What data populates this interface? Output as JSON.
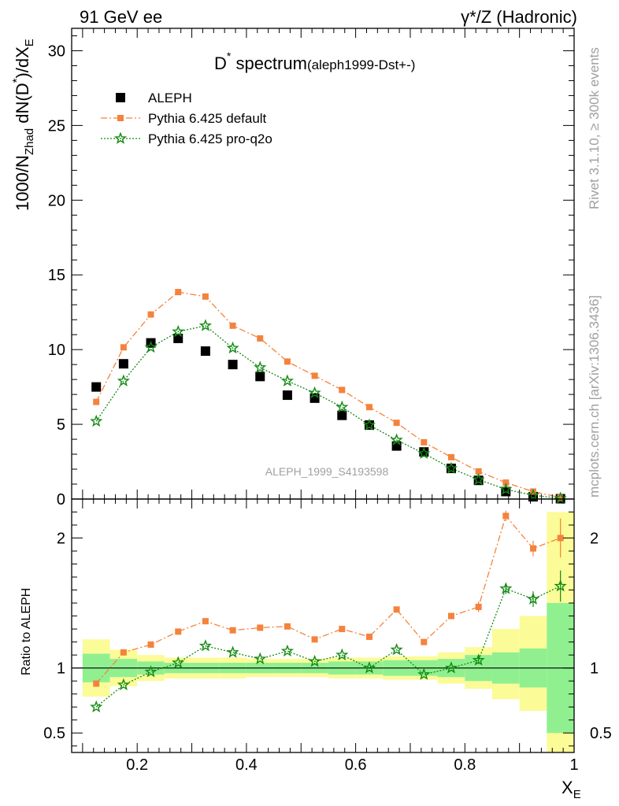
{
  "header": {
    "left": "91 GeV ee",
    "right": "γ*/Z (Hadronic)"
  },
  "side_labels": {
    "rivet": "Rivet 3.1.10, ≥ 300k events",
    "mcplots": "mcplots.cern.ch [arXiv:1306.3436]"
  },
  "chart_data": [
    {
      "type": "scatter",
      "panel": "main",
      "title_main": "D",
      "title_sup": "*",
      "title_rest": " spectrum",
      "title_suffix": "(aleph1999-Dst+-)",
      "watermark": "ALEPH_1999_S4193598",
      "ylabel": "1000/N_Zhad dN(D*)/dX_E",
      "ylabel_parts": {
        "a": "1000/N",
        "a_sub": "Zhad",
        "b": " dN(D",
        "b_sup": "*",
        "c": ")/dX",
        "c_sub": "E"
      },
      "xlim": [
        0.08,
        1.0
      ],
      "ylim": [
        0,
        31.5
      ],
      "yticks": [
        0,
        5,
        10,
        15,
        20,
        25,
        30
      ],
      "ytick_labels": [
        "0",
        "5",
        "10",
        "15",
        "20",
        "25",
        "30"
      ],
      "legend_placement": "top-left",
      "x": [
        0.125,
        0.175,
        0.225,
        0.275,
        0.325,
        0.375,
        0.425,
        0.475,
        0.525,
        0.575,
        0.625,
        0.675,
        0.725,
        0.775,
        0.825,
        0.875,
        0.925,
        0.975
      ],
      "series": [
        {
          "name": "ALEPH",
          "style": "square",
          "color": "#000000",
          "values": [
            7.5,
            9.05,
            10.45,
            10.75,
            9.9,
            9.0,
            8.2,
            6.95,
            6.75,
            5.6,
            4.95,
            3.55,
            3.15,
            2.05,
            1.25,
            0.5,
            0.15,
            0.02
          ]
        },
        {
          "name": "Pythia 6.425 default",
          "style": "orange-square",
          "color": "#f5823c",
          "values": [
            6.5,
            10.15,
            12.35,
            13.85,
            13.55,
            11.6,
            10.75,
            9.2,
            8.25,
            7.3,
            6.15,
            5.1,
            3.8,
            2.8,
            1.85,
            1.1,
            0.5,
            0.1
          ]
        },
        {
          "name": "Pythia 6.425 pro-q2o",
          "style": "green-star",
          "color": "#138a13",
          "values": [
            5.2,
            7.9,
            10.15,
            11.2,
            11.6,
            10.1,
            8.8,
            7.9,
            7.1,
            6.15,
            4.95,
            3.95,
            3.05,
            2.05,
            1.3,
            0.65,
            0.25,
            0.05
          ]
        }
      ]
    },
    {
      "type": "scatter",
      "panel": "ratio",
      "ylabel": "Ratio to ALEPH",
      "xlabel": "X",
      "xlabel_sub": "E",
      "xlim": [
        0.08,
        1.0
      ],
      "ylim": [
        0.35,
        2.3
      ],
      "yticks": [
        0.5,
        1,
        2
      ],
      "ytick_labels": [
        "0.5",
        "1",
        "2"
      ],
      "xticks": [
        0.2,
        0.4,
        0.6,
        0.8,
        1.0
      ],
      "xtick_labels": [
        "0.2",
        "0.4",
        "0.6",
        "0.8",
        "1"
      ],
      "bands": {
        "edges": [
          0.1,
          0.15,
          0.2,
          0.25,
          0.3,
          0.35,
          0.4,
          0.45,
          0.5,
          0.55,
          0.6,
          0.65,
          0.7,
          0.75,
          0.8,
          0.85,
          0.9,
          0.95,
          1.0
        ],
        "inner_color": "#90f090",
        "outer_color": "#fbfb98",
        "inner": [
          [
            0.89,
            1.11
          ],
          [
            0.93,
            1.07
          ],
          [
            0.95,
            1.05
          ],
          [
            0.96,
            1.04
          ],
          [
            0.96,
            1.04
          ],
          [
            0.96,
            1.04
          ],
          [
            0.96,
            1.04
          ],
          [
            0.96,
            1.04
          ],
          [
            0.96,
            1.04
          ],
          [
            0.95,
            1.05
          ],
          [
            0.95,
            1.05
          ],
          [
            0.94,
            1.06
          ],
          [
            0.94,
            1.06
          ],
          [
            0.93,
            1.07
          ],
          [
            0.9,
            1.1
          ],
          [
            0.88,
            1.12
          ],
          [
            0.85,
            1.15
          ],
          [
            0.5,
            1.5
          ]
        ],
        "outer": [
          [
            0.78,
            1.22
          ],
          [
            0.86,
            1.14
          ],
          [
            0.9,
            1.1
          ],
          [
            0.92,
            1.08
          ],
          [
            0.92,
            1.08
          ],
          [
            0.92,
            1.08
          ],
          [
            0.93,
            1.07
          ],
          [
            0.93,
            1.07
          ],
          [
            0.93,
            1.07
          ],
          [
            0.92,
            1.08
          ],
          [
            0.92,
            1.08
          ],
          [
            0.91,
            1.09
          ],
          [
            0.91,
            1.09
          ],
          [
            0.88,
            1.12
          ],
          [
            0.84,
            1.16
          ],
          [
            0.76,
            1.3
          ],
          [
            0.67,
            1.4
          ],
          [
            0.2,
            2.2
          ]
        ]
      },
      "series": [
        {
          "name": "Pythia 6.425 default",
          "style": "orange-square",
          "color": "#f5823c",
          "values": [
            0.88,
            1.12,
            1.18,
            1.28,
            1.36,
            1.29,
            1.31,
            1.32,
            1.22,
            1.3,
            1.24,
            1.45,
            1.2,
            1.4,
            1.47,
            2.17,
            1.92,
            2.0
          ],
          "errors": [
            0,
            0,
            0,
            0,
            0,
            0,
            0,
            0,
            0,
            0,
            0,
            0,
            0,
            0,
            0.04,
            0.04,
            0.06,
            0.15
          ]
        },
        {
          "name": "Pythia 6.425 pro-q2o",
          "style": "green-star",
          "color": "#138a13",
          "values": [
            0.7,
            0.87,
            0.97,
            1.04,
            1.17,
            1.12,
            1.07,
            1.13,
            1.05,
            1.1,
            1.0,
            1.14,
            0.95,
            1.0,
            1.06,
            1.61,
            1.53,
            1.63
          ],
          "errors": [
            0,
            0,
            0,
            0,
            0,
            0,
            0,
            0,
            0,
            0,
            0,
            0,
            0,
            0,
            0.03,
            0.04,
            0.06,
            0.12
          ]
        }
      ]
    }
  ]
}
